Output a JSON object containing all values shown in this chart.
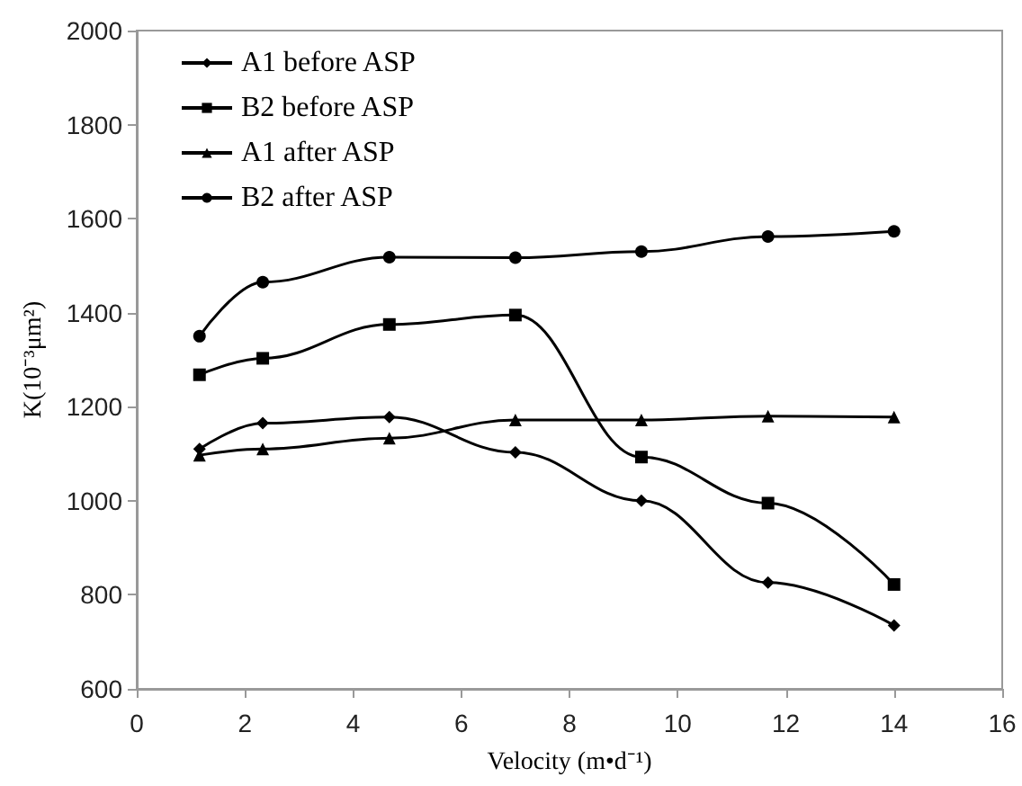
{
  "chart_data": {
    "type": "line",
    "xlabel": "Velocity (m•d⁻¹)",
    "ylabel": "K(10⁻³μm²)",
    "x": [
      1.16,
      2.33,
      4.67,
      7,
      9.33,
      11.67,
      14
    ],
    "xlim": [
      0,
      16
    ],
    "xticks": [
      0,
      2,
      4,
      6,
      8,
      10,
      12,
      14,
      16
    ],
    "ylim": [
      600,
      2000
    ],
    "yticks": [
      600,
      800,
      1000,
      1200,
      1400,
      1600,
      1800,
      2000
    ],
    "grid": false,
    "legend": "top left",
    "line_style": "solid",
    "series": [
      {
        "name": "A1 before ASP",
        "color": "#000000",
        "marker": "diamond",
        "values": [
          1110,
          1165,
          1178,
          1103,
          1000,
          826,
          735
        ]
      },
      {
        "name": "B2 before ASP",
        "color": "#000000",
        "marker": "square",
        "values": [
          1268,
          1303,
          1375,
          1395,
          1093,
          995,
          822
        ]
      },
      {
        "name": "A1 after ASP",
        "color": "#000000",
        "marker": "triangle",
        "values": [
          1097,
          1110,
          1133,
          1172,
          1172,
          1180,
          1178
        ]
      },
      {
        "name": "B2 after ASP",
        "color": "#000000",
        "marker": "circle",
        "values": [
          1350,
          1465,
          1518,
          1517,
          1530,
          1562,
          1573
        ]
      }
    ]
  }
}
